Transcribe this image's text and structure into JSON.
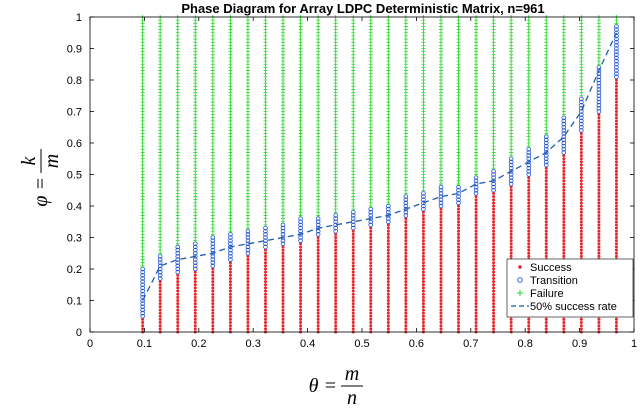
{
  "chart_data": {
    "type": "scatter",
    "title": "Phase Diagram for Array LDPC Deterministic Matrix, n=961",
    "xlabel": {
      "lhs": "θ =",
      "num": "m",
      "den": "n"
    },
    "ylabel": {
      "lhs": "φ =",
      "num": "k",
      "den": "m"
    },
    "xlim": [
      0,
      1
    ],
    "ylim": [
      0,
      1
    ],
    "xticks": [
      "0",
      "0.1",
      "0.2",
      "0.3",
      "0.4",
      "0.5",
      "0.6",
      "0.7",
      "0.8",
      "0.9",
      "1"
    ],
    "yticks": [
      "0",
      "0.1",
      "0.2",
      "0.3",
      "0.4",
      "0.5",
      "0.6",
      "0.7",
      "0.8",
      "0.9",
      "1"
    ],
    "grid": false,
    "legend_position": "bottom-right",
    "colors": {
      "success": "#e8262b",
      "transition": "#2255d4",
      "failure": "#2fd62f",
      "curve": "#1f5ea8"
    },
    "columns_x": [
      0.0968,
      0.129,
      0.1613,
      0.1935,
      0.2258,
      0.2581,
      0.2903,
      0.3226,
      0.3548,
      0.3871,
      0.4194,
      0.4516,
      0.4839,
      0.5161,
      0.5484,
      0.5806,
      0.6129,
      0.6452,
      0.6774,
      0.7097,
      0.7419,
      0.7742,
      0.8065,
      0.8387,
      0.871,
      0.9032,
      0.9355,
      0.9677
    ],
    "success_top": [
      0.04,
      0.16,
      0.18,
      0.19,
      0.2,
      0.22,
      0.24,
      0.26,
      0.27,
      0.28,
      0.3,
      0.31,
      0.32,
      0.33,
      0.34,
      0.36,
      0.38,
      0.39,
      0.41,
      0.43,
      0.44,
      0.47,
      0.49,
      0.52,
      0.56,
      0.63,
      0.7,
      0.8
    ],
    "transition_top": [
      0.2,
      0.24,
      0.27,
      0.28,
      0.3,
      0.31,
      0.32,
      0.33,
      0.34,
      0.36,
      0.36,
      0.37,
      0.38,
      0.39,
      0.41,
      0.43,
      0.44,
      0.46,
      0.47,
      0.49,
      0.51,
      0.55,
      0.58,
      0.62,
      0.68,
      0.74,
      0.84,
      0.97
    ],
    "series": [
      {
        "name": "Success",
        "marker": "dot"
      },
      {
        "name": "Transition",
        "marker": "circle"
      },
      {
        "name": "Failure",
        "marker": "plus"
      },
      {
        "name": "50% success rate",
        "style": "dashed",
        "x": [
          0.0968,
          0.129,
          0.1613,
          0.1935,
          0.2258,
          0.2581,
          0.2903,
          0.3226,
          0.3548,
          0.3871,
          0.4194,
          0.4516,
          0.4839,
          0.5161,
          0.5484,
          0.5806,
          0.6129,
          0.6452,
          0.6774,
          0.7097,
          0.7419,
          0.7742,
          0.8065,
          0.8387,
          0.871,
          0.9032,
          0.9355,
          0.9677
        ],
        "y": [
          0.1,
          0.21,
          0.23,
          0.24,
          0.25,
          0.27,
          0.28,
          0.29,
          0.3,
          0.31,
          0.33,
          0.34,
          0.35,
          0.36,
          0.37,
          0.39,
          0.41,
          0.43,
          0.44,
          0.47,
          0.48,
          0.51,
          0.54,
          0.57,
          0.62,
          0.7,
          0.83,
          0.95
        ]
      }
    ]
  }
}
